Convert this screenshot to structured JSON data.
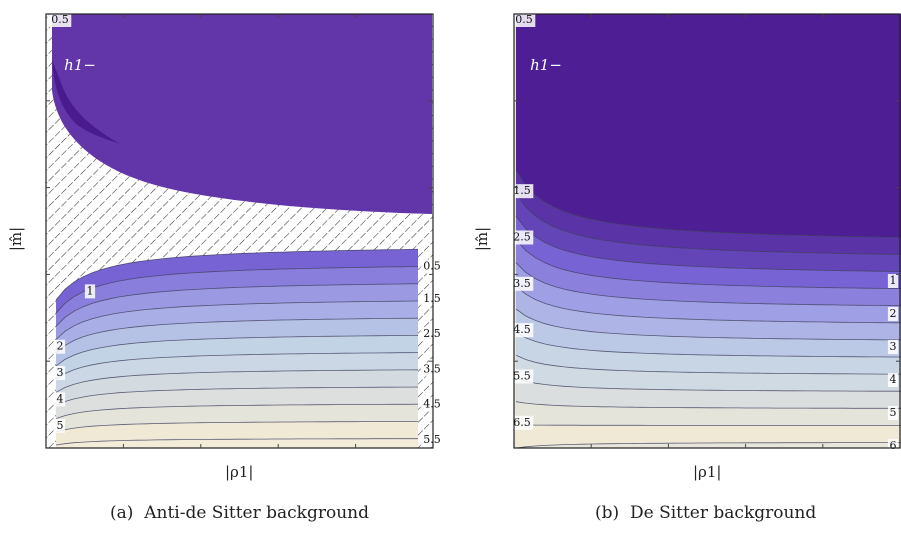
{
  "chart_data": [
    {
      "type": "contour",
      "panel_label": "(a)",
      "caption": "Anti-de Sitter background",
      "xlabel": "|ρ1|",
      "ylabel": "|m̂|",
      "top_tick_label": "0.5",
      "region_label": "h1−",
      "contour_labels": [
        {
          "text": "0.5",
          "side": "right"
        },
        {
          "text": "1",
          "side": "left"
        },
        {
          "text": "1.5",
          "side": "right"
        },
        {
          "text": "2",
          "side": "left"
        },
        {
          "text": "2.5",
          "side": "right"
        },
        {
          "text": "3",
          "side": "left"
        },
        {
          "text": "3.5",
          "side": "right"
        },
        {
          "text": "4",
          "side": "left"
        },
        {
          "text": "4.5",
          "side": "right"
        },
        {
          "text": "5",
          "side": "left"
        },
        {
          "text": "5.5",
          "side": "right"
        }
      ],
      "colors": {
        "top_region": "#6236a8",
        "top_region_dark": "#4a1a8f",
        "low": "#7b67d6",
        "high": "#f0ead8",
        "hatch": "#333333"
      }
    },
    {
      "type": "contour",
      "panel_label": "(b)",
      "caption": "De Sitter background",
      "xlabel": "|ρ1|",
      "ylabel": "|m̂|",
      "top_tick_label": "0.5",
      "region_label": "h1−",
      "contour_labels": [
        {
          "text": "1.5",
          "side": "left"
        },
        {
          "text": "1",
          "side": "right"
        },
        {
          "text": "2.5",
          "side": "left"
        },
        {
          "text": "2",
          "side": "right"
        },
        {
          "text": "3.5",
          "side": "left"
        },
        {
          "text": "3",
          "side": "right"
        },
        {
          "text": "4.5",
          "side": "left"
        },
        {
          "text": "4",
          "side": "right"
        },
        {
          "text": "5.5",
          "side": "left"
        },
        {
          "text": "5",
          "side": "right"
        },
        {
          "text": "6.5",
          "side": "left"
        },
        {
          "text": "6",
          "side": "right"
        }
      ],
      "colors": {
        "top_region": "#4e1f94",
        "low": "#6b55c8",
        "high": "#ece8dc"
      }
    }
  ]
}
